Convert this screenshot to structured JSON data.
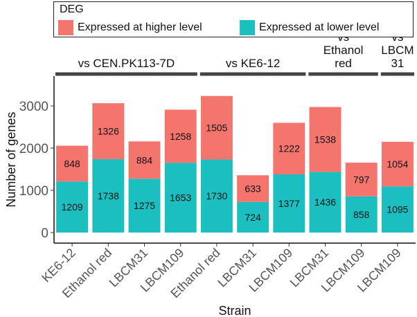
{
  "chart_data": {
    "type": "bar",
    "stacked": true,
    "title": "",
    "xlabel": "Strain",
    "ylabel": "Number of genes",
    "ylim": [
      0,
      3500
    ],
    "yticks": [
      0,
      1000,
      2000,
      3000
    ],
    "legend": {
      "title": "DEG",
      "placement": "top",
      "entries": [
        "Expressed at higher level",
        "Expressed at lower level"
      ]
    },
    "categories": [
      "KE6-12",
      "Ethanol red",
      "LBCM31",
      "LBCM109",
      "Ethanol red",
      "LBCM31",
      "LBCM109",
      "LBCM31",
      "LBCM109",
      "LBCM109"
    ],
    "series": [
      {
        "name": "Expressed at lower level",
        "color": "#1cbfc0",
        "values": [
          1209,
          1738,
          1275,
          1653,
          1730,
          724,
          1377,
          1436,
          858,
          1095
        ]
      },
      {
        "name": "Expressed at higher level",
        "color": "#f4756d",
        "values": [
          848,
          1326,
          884,
          1258,
          1505,
          633,
          1222,
          1538,
          797,
          1054
        ]
      }
    ],
    "groups": [
      {
        "label_lines": [
          "vs CEN.PK113-7D"
        ],
        "start": 0,
        "end": 3
      },
      {
        "label_lines": [
          "vs KE6-12"
        ],
        "start": 4,
        "end": 6
      },
      {
        "label_lines": [
          "vs",
          "Ethanol",
          "red"
        ],
        "start": 7,
        "end": 8
      },
      {
        "label_lines": [
          "vs",
          "LBCM",
          "31"
        ],
        "start": 9,
        "end": 9
      }
    ]
  }
}
